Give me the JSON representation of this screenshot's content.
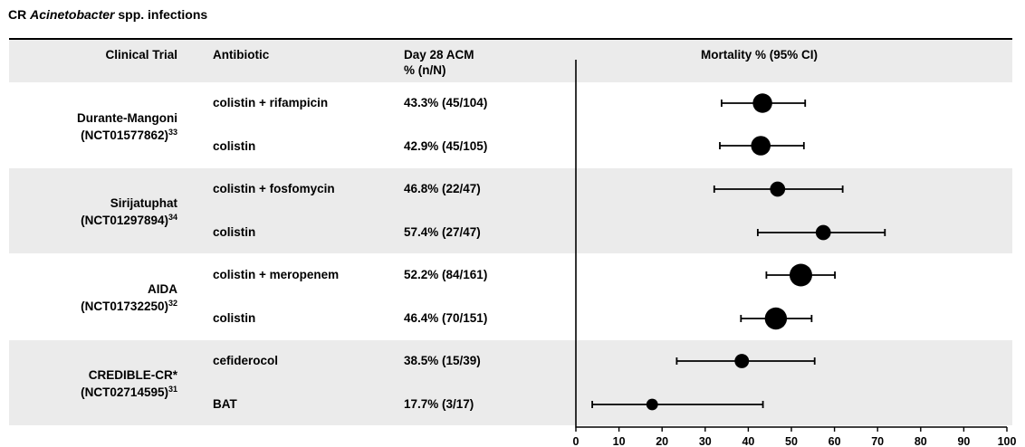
{
  "title": {
    "prefix": "CR ",
    "italic": "Acinetobacter",
    "suffix": " spp. infections"
  },
  "headers": {
    "trial": "Clinical Trial",
    "antibiotic": "Antibiotic",
    "acm_line1": "Day 28 ACM",
    "acm_line2": "% (n/N)",
    "mortality": "Mortality %  (95% CI)"
  },
  "trials": [
    {
      "name": "Durante-Mangoni",
      "id": "(NCT01577862)",
      "ref": "33"
    },
    {
      "name": "Sirijatuphat",
      "id": "(NCT01297894)",
      "ref": "34"
    },
    {
      "name": "AIDA",
      "id": "(NCT01732250)",
      "ref": "32"
    },
    {
      "name": "CREDIBLE-CR*",
      "id": "(NCT02714595)",
      "ref": "31"
    }
  ],
  "rows": [
    {
      "antibiotic": "colistin + rifampicin",
      "acm": "43.3% (45/104)"
    },
    {
      "antibiotic": "colistin",
      "acm": "42.9% (45/105)"
    },
    {
      "antibiotic": "colistin + fosfomycin",
      "acm": "46.8% (22/47)"
    },
    {
      "antibiotic": "colistin",
      "acm": "57.4% (27/47)"
    },
    {
      "antibiotic": "colistin + meropenem",
      "acm": "52.2% (84/161)"
    },
    {
      "antibiotic": "colistin",
      "acm": "46.4% (70/151)"
    },
    {
      "antibiotic": "cefiderocol",
      "acm": "38.5% (15/39)"
    },
    {
      "antibiotic": "BAT",
      "acm": "17.7% (3/17)"
    }
  ],
  "chart_data": {
    "type": "scatter",
    "subtype": "forest-plot",
    "title": "Mortality %  (95% CI)",
    "xlim": [
      0,
      100
    ],
    "xticks": [
      0,
      10,
      20,
      30,
      40,
      50,
      60,
      70,
      80,
      90,
      100
    ],
    "points": [
      {
        "label": "colistin + rifampicin",
        "estimate": 43.3,
        "ci_low": 33.8,
        "ci_high": 53.2,
        "n": 104
      },
      {
        "label": "colistin",
        "estimate": 42.9,
        "ci_low": 33.4,
        "ci_high": 52.9,
        "n": 105
      },
      {
        "label": "colistin + fosfomycin",
        "estimate": 46.8,
        "ci_low": 32.1,
        "ci_high": 61.9,
        "n": 47
      },
      {
        "label": "colistin",
        "estimate": 57.4,
        "ci_low": 42.2,
        "ci_high": 71.7,
        "n": 47
      },
      {
        "label": "colistin + meropenem",
        "estimate": 52.2,
        "ci_low": 44.2,
        "ci_high": 60.1,
        "n": 161
      },
      {
        "label": "colistin",
        "estimate": 46.4,
        "ci_low": 38.3,
        "ci_high": 54.7,
        "n": 151
      },
      {
        "label": "cefiderocol",
        "estimate": 38.5,
        "ci_low": 23.4,
        "ci_high": 55.4,
        "n": 39
      },
      {
        "label": "BAT",
        "estimate": 17.7,
        "ci_low": 3.8,
        "ci_high": 43.4,
        "n": 17
      }
    ],
    "colors": {
      "marker": "#000000",
      "band": "#ebebeb"
    }
  }
}
